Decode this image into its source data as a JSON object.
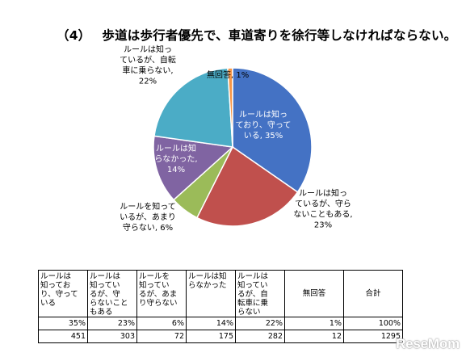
{
  "header": {
    "number": "（4）",
    "text": "歩道は歩行者優先で、車道寄りを徐行等しなければならない。"
  },
  "chart_data": {
    "type": "pie",
    "title": "歩道は歩行者優先で、車道寄りを徐行等しなければならない。",
    "slices": [
      {
        "name": "ルールは知っており、守っている",
        "percent": 35,
        "count": 451,
        "color": "#4472C4",
        "label_lines": [
          "ルールは知っ",
          "ており、守って",
          "いる, 35%"
        ]
      },
      {
        "name": "ルールは知っているが、守らないこともある",
        "percent": 23,
        "count": 303,
        "color": "#C0504D",
        "label_lines": [
          "ルールは知っ",
          "ているが、守ら",
          "ないこともある,",
          "23%"
        ]
      },
      {
        "name": "ルールを知っているが、あまり守らない",
        "percent": 6,
        "count": 72,
        "color": "#9BBB59",
        "label_lines": [
          "ルールを知って",
          "いるが、あまり",
          "守らない, 6%"
        ]
      },
      {
        "name": "ルールは知らなかった",
        "percent": 14,
        "count": 175,
        "color": "#8064A2",
        "label_lines": [
          "ルールは知",
          "らなかった,",
          "14%"
        ]
      },
      {
        "name": "ルールは知っているが、自転車に乗らない",
        "percent": 22,
        "count": 282,
        "color": "#4BACC6",
        "label_lines": [
          "ルールは知っ",
          "ているが、自転",
          "車に乗らない,",
          "22%"
        ]
      },
      {
        "name": "無回答",
        "percent": 1,
        "count": 12,
        "color": "#F79646",
        "label_lines": [
          "無回答, 1%"
        ]
      }
    ],
    "total": {
      "label": "合計",
      "percent": "100%",
      "count": 1295
    }
  },
  "table": {
    "headers": [
      [
        "ルールは",
        "知ってお",
        "り、守って",
        "いる"
      ],
      [
        "ルールは",
        "知ってい",
        "るが、守",
        "らないこと",
        "もある"
      ],
      [
        "ルールを",
        "知ってい",
        "るが、あま",
        "り守らない"
      ],
      [
        "ルールは知",
        "らなかった"
      ],
      [
        "ルールは",
        "知ってい",
        "るが、自",
        "転車に乗",
        "らない"
      ],
      [
        "無回答"
      ],
      [
        "合計"
      ]
    ],
    "percent_row": [
      "35%",
      "23%",
      "6%",
      "14%",
      "22%",
      "1%",
      "100%"
    ],
    "count_row": [
      "451",
      "303",
      "72",
      "175",
      "282",
      "12",
      "1295"
    ]
  },
  "logo": {
    "text": "ReseMom"
  }
}
